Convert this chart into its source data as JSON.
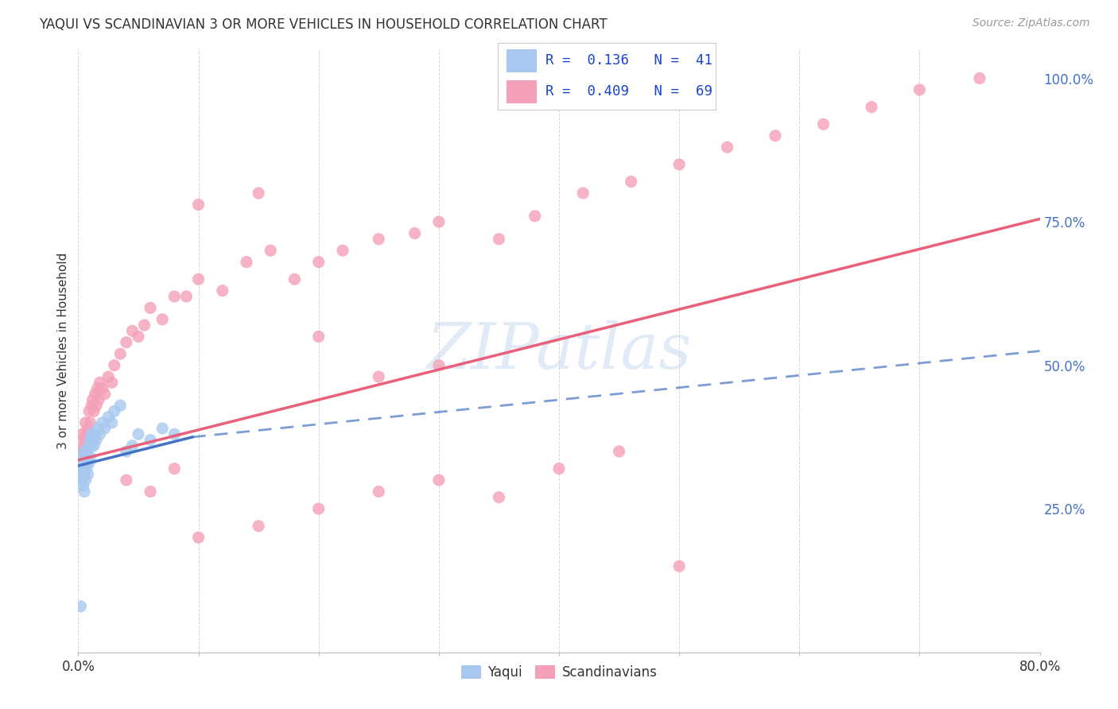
{
  "title": "YAQUI VS SCANDINAVIAN 3 OR MORE VEHICLES IN HOUSEHOLD CORRELATION CHART",
  "source": "Source: ZipAtlas.com",
  "ylabel": "3 or more Vehicles in Household",
  "watermark": "ZIPatlas",
  "legend_yaqui_R": "0.136",
  "legend_yaqui_N": "41",
  "legend_scand_R": "0.409",
  "legend_scand_N": "69",
  "yaqui_color": "#a8c8f0",
  "scand_color": "#f4a0b8",
  "yaqui_line_color": "#4472c4",
  "scand_line_color": "#e8607a",
  "background_color": "#ffffff",
  "grid_color": "#cccccc",
  "right_axis_color": "#4472c4",
  "xmin": 0.0,
  "xmax": 0.8,
  "ymin": 0.0,
  "ymax": 1.05,
  "right_yticks": [
    0.0,
    0.25,
    0.5,
    0.75,
    1.0
  ],
  "right_yticklabels": [
    "",
    "25.0%",
    "50.0%",
    "75.0%",
    "100.0%"
  ],
  "yaqui_x": [
    0.001,
    0.002,
    0.002,
    0.003,
    0.003,
    0.004,
    0.004,
    0.005,
    0.005,
    0.005,
    0.006,
    0.006,
    0.007,
    0.007,
    0.008,
    0.008,
    0.009,
    0.009,
    0.01,
    0.01,
    0.011,
    0.011,
    0.012,
    0.013,
    0.014,
    0.015,
    0.016,
    0.018,
    0.02,
    0.022,
    0.025,
    0.028,
    0.03,
    0.035,
    0.04,
    0.045,
    0.05,
    0.06,
    0.07,
    0.08,
    0.002
  ],
  "yaqui_y": [
    0.32,
    0.31,
    0.34,
    0.3,
    0.33,
    0.29,
    0.32,
    0.28,
    0.31,
    0.35,
    0.3,
    0.33,
    0.32,
    0.35,
    0.31,
    0.34,
    0.33,
    0.36,
    0.34,
    0.37,
    0.36,
    0.38,
    0.37,
    0.36,
    0.38,
    0.37,
    0.39,
    0.38,
    0.4,
    0.39,
    0.41,
    0.4,
    0.42,
    0.43,
    0.35,
    0.36,
    0.38,
    0.37,
    0.39,
    0.38,
    0.08
  ],
  "scand_x": [
    0.002,
    0.003,
    0.004,
    0.005,
    0.006,
    0.007,
    0.008,
    0.009,
    0.01,
    0.011,
    0.012,
    0.013,
    0.014,
    0.015,
    0.016,
    0.017,
    0.018,
    0.02,
    0.022,
    0.025,
    0.028,
    0.03,
    0.035,
    0.04,
    0.045,
    0.05,
    0.055,
    0.06,
    0.07,
    0.08,
    0.09,
    0.1,
    0.12,
    0.14,
    0.16,
    0.18,
    0.2,
    0.22,
    0.25,
    0.28,
    0.3,
    0.35,
    0.38,
    0.42,
    0.46,
    0.5,
    0.54,
    0.58,
    0.62,
    0.66,
    0.7,
    0.04,
    0.06,
    0.08,
    0.1,
    0.15,
    0.2,
    0.25,
    0.3,
    0.35,
    0.4,
    0.45,
    0.5,
    0.1,
    0.15,
    0.2,
    0.25,
    0.3,
    0.75
  ],
  "scand_y": [
    0.35,
    0.38,
    0.36,
    0.37,
    0.4,
    0.38,
    0.39,
    0.42,
    0.4,
    0.43,
    0.44,
    0.42,
    0.45,
    0.43,
    0.46,
    0.44,
    0.47,
    0.46,
    0.45,
    0.48,
    0.47,
    0.5,
    0.52,
    0.54,
    0.56,
    0.55,
    0.57,
    0.6,
    0.58,
    0.62,
    0.62,
    0.65,
    0.63,
    0.68,
    0.7,
    0.65,
    0.68,
    0.7,
    0.72,
    0.73,
    0.75,
    0.72,
    0.76,
    0.8,
    0.82,
    0.85,
    0.88,
    0.9,
    0.92,
    0.95,
    0.98,
    0.3,
    0.28,
    0.32,
    0.2,
    0.22,
    0.25,
    0.28,
    0.3,
    0.27,
    0.32,
    0.35,
    0.15,
    0.78,
    0.8,
    0.55,
    0.48,
    0.5,
    1.0
  ],
  "yaqui_line_x0": 0.0,
  "yaqui_line_y0": 0.325,
  "yaqui_line_x1": 0.095,
  "yaqui_line_y1": 0.375,
  "scand_line_x0": 0.0,
  "scand_line_y0": 0.335,
  "scand_line_x1": 0.8,
  "scand_line_y1": 0.755,
  "dashed_line_x0": 0.095,
  "dashed_line_y0": 0.375,
  "dashed_line_x1": 0.8,
  "dashed_line_y1": 0.525
}
